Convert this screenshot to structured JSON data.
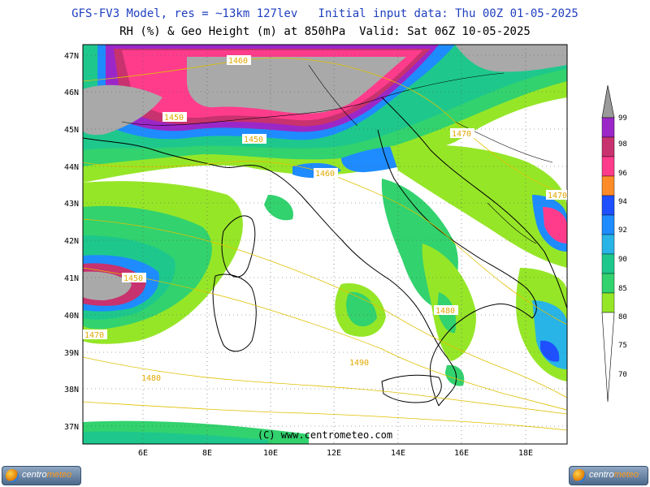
{
  "header": {
    "line1": "GFS-FV3 Model, res = ~13km 127lev   Initial input data: Thu 00Z 01-05-2025",
    "line2": "RH (%) & Geo Height (m) at 850hPa  Valid: Sat 06Z 10-05-2025"
  },
  "map": {
    "lat_labels": [
      "47N",
      "46N",
      "45N",
      "44N",
      "43N",
      "42N",
      "41N",
      "40N",
      "39N",
      "38N",
      "37N"
    ],
    "lon_labels": [
      "6E",
      "8E",
      "10E",
      "12E",
      "14E",
      "16E",
      "18E"
    ],
    "contours": [
      "1460",
      "1450",
      "1450",
      "1460",
      "1470",
      "1470",
      "1450",
      "1470",
      "1480",
      "1480",
      "1490"
    ],
    "copyright": "(C) www.centrometeo.com"
  },
  "colorbar": {
    "labels": [
      "99",
      "98",
      "96",
      "94",
      "92",
      "90",
      "85",
      "80",
      "75",
      "70"
    ],
    "colors": [
      "#9c27c8",
      "#c8326e",
      "#ff3c8c",
      "#ff8c28",
      "#1e50ff",
      "#1e8cff",
      "#28b4e6",
      "#1ec88c",
      "#32d26e",
      "#96e628"
    ]
  },
  "logos": {
    "brand_a": "centro",
    "brand_b": "meteo"
  }
}
